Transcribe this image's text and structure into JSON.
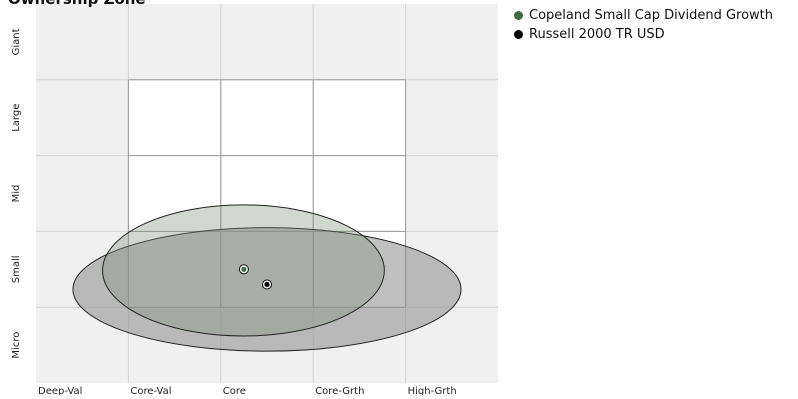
{
  "chart_data": {
    "type": "scatter",
    "title": "Ownership Zone",
    "xlabel": "",
    "ylabel": "",
    "x_categories": [
      "Deep-Val",
      "Core-Val",
      "Core",
      "Core-Grth",
      "High-Grth"
    ],
    "y_categories": [
      "Micro",
      "Small",
      "Mid",
      "Large",
      "Giant"
    ],
    "xlim": [
      -0.5,
      4.5
    ],
    "ylim": [
      -0.5,
      4.5
    ],
    "grid": true,
    "style_box": {
      "x_range": [
        0.5,
        3.5
      ],
      "y_range": [
        0.5,
        3.5
      ]
    },
    "legend_position": "right",
    "series": [
      {
        "name": "Copeland Small Cap Dividend Growth",
        "centroid": {
          "x": 1.75,
          "y": 1.0
        },
        "zone": {
          "x_range": [
            0.22,
            3.27
          ],
          "y_range": [
            0.12,
            1.85
          ]
        },
        "color": "#3e6a45",
        "zone_fill": "#7a8f75",
        "zone_fill_opacity": 0.35
      },
      {
        "name": "Russell 2000 TR USD",
        "centroid": {
          "x": 2.0,
          "y": 0.8
        },
        "zone": {
          "x_range": [
            -0.1,
            4.1
          ],
          "y_range": [
            -0.08,
            1.55
          ]
        },
        "color": "#000000",
        "zone_fill": "#8c8c8c",
        "zone_fill_opacity": 0.55
      }
    ]
  },
  "colors": {
    "plot_background": "#f0f0f0",
    "grid_line": "#d4d4d4",
    "box_fill": "#ffffff",
    "box_line": "#9a9a9a"
  }
}
